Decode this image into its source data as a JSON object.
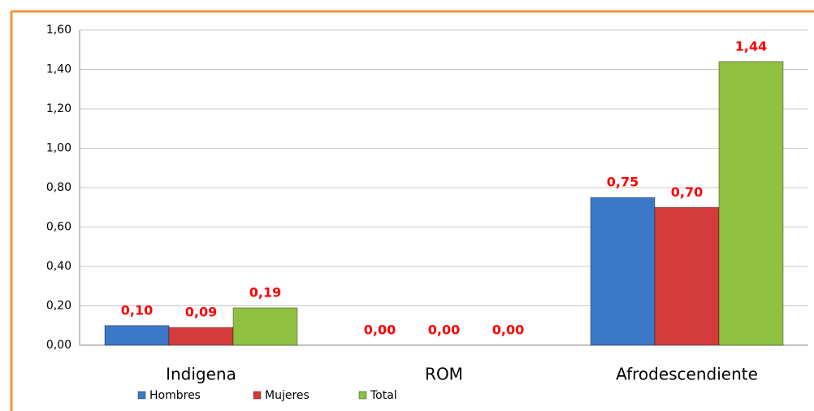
{
  "chart_data": {
    "type": "bar",
    "categories": [
      "Indigena",
      "ROM",
      "Afrodescendiente"
    ],
    "series": [
      {
        "name": "Hombres",
        "color": "#3c78c8",
        "values": [
          0.1,
          0.0,
          0.75
        ],
        "value_labels": [
          "0,10",
          "0,00",
          "0,75"
        ]
      },
      {
        "name": "Mujeres",
        "color": "#d43c3c",
        "values": [
          0.09,
          0.0,
          0.7
        ],
        "value_labels": [
          "0,09",
          "0,00",
          "0,70"
        ]
      },
      {
        "name": "Total",
        "color": "#90c040",
        "values": [
          0.19,
          0.0,
          1.44
        ],
        "value_labels": [
          "0,19",
          "0,00",
          "1,44"
        ]
      }
    ],
    "ylim": [
      0,
      1.6
    ],
    "yticks": [
      {
        "value": 0,
        "label": "0,00"
      },
      {
        "value": 0.2,
        "label": "0,20"
      },
      {
        "value": 0.4,
        "label": "0,40"
      },
      {
        "value": 0.6,
        "label": "0,60"
      },
      {
        "value": 0.8,
        "label": "0,80"
      },
      {
        "value": 1.0,
        "label": "1,00"
      },
      {
        "value": 1.2,
        "label": "1,20"
      },
      {
        "value": 1.4,
        "label": "1,40"
      },
      {
        "value": 1.6,
        "label": "1,60"
      }
    ],
    "grid": true,
    "legend": "bottom"
  }
}
